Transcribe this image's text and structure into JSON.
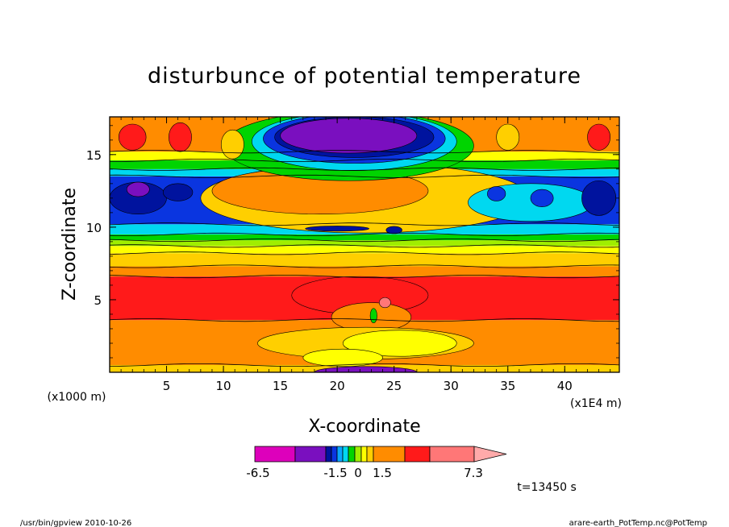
{
  "chart_data": {
    "type": "heatmap",
    "title": "disturbunce of potential temperature",
    "xlabel": "X-coordinate",
    "ylabel": "Z-coordinate",
    "x_unit_label": "(x1E4 m)",
    "y_unit_label": "(x1000 m)",
    "xlim": [
      0,
      44.8
    ],
    "ylim": [
      0,
      17.6
    ],
    "x_ticks": [
      "5",
      "10",
      "15",
      "20",
      "25",
      "30",
      "35",
      "40"
    ],
    "y_ticks": [
      "5",
      "10",
      "15"
    ],
    "colorbar": {
      "labels": [
        "-6.5",
        "-1.5",
        "0",
        "1.5",
        "7.3"
      ],
      "levels": [
        -6.5,
        -4.5,
        -2.5,
        -1.5,
        -1.0,
        -0.5,
        0,
        0.5,
        1.0,
        1.5,
        2.5,
        4.0,
        5.0,
        7.3
      ],
      "colors": [
        "#dd00bb",
        "#7a0fbf",
        "#00139e",
        "#0a35e0",
        "#0aa6ff",
        "#00d8f0",
        "#00d400",
        "#a0ee00",
        "#ffff00",
        "#ffcf00",
        "#ff8c00",
        "#ff1a1a",
        "#ff7777",
        "#ffaaaa"
      ]
    },
    "time_label": "t=13450 s",
    "grid": false,
    "bands": [
      {
        "z0": 0.0,
        "z1": 0.5,
        "color": "#ffcf00"
      },
      {
        "z0": 0.5,
        "z1": 3.6,
        "color": "#ff8c00"
      },
      {
        "z0": 3.6,
        "z1": 6.6,
        "color": "#ff1a1a"
      },
      {
        "z0": 6.6,
        "z1": 7.3,
        "color": "#ff8c00"
      },
      {
        "z0": 7.3,
        "z1": 8.2,
        "color": "#ffcf00"
      },
      {
        "z0": 8.2,
        "z1": 8.7,
        "color": "#ffff00"
      },
      {
        "z0": 8.7,
        "z1": 9.1,
        "color": "#a0ee00"
      },
      {
        "z0": 9.1,
        "z1": 9.5,
        "color": "#00d400"
      },
      {
        "z0": 9.5,
        "z1": 10.2,
        "color": "#00d8f0"
      },
      {
        "z0": 10.2,
        "z1": 13.5,
        "color": "#0a35e0"
      },
      {
        "z0": 13.5,
        "z1": 14.0,
        "color": "#00d8f0"
      },
      {
        "z0": 14.0,
        "z1": 14.6,
        "color": "#00d400"
      },
      {
        "z0": 14.6,
        "z1": 15.2,
        "color": "#ffff00"
      },
      {
        "z0": 15.2,
        "z1": 17.6,
        "color": "#ff8c00"
      }
    ],
    "blobs": [
      {
        "x": 22.5,
        "z": 12.0,
        "rx": 14.5,
        "rz": 2.4,
        "color": "#ffcf00"
      },
      {
        "x": 18.5,
        "z": 12.5,
        "rx": 9.5,
        "rz": 1.6,
        "color": "#ff8c00"
      },
      {
        "x": 21.0,
        "z": 15.6,
        "rx": 11.0,
        "rz": 2.4,
        "color": "#00d400"
      },
      {
        "x": 21.5,
        "z": 15.9,
        "rx": 9.0,
        "rz": 2.0,
        "color": "#00d8f0"
      },
      {
        "x": 21.5,
        "z": 16.1,
        "rx": 8.0,
        "rz": 1.7,
        "color": "#0a35e0"
      },
      {
        "x": 21.5,
        "z": 16.2,
        "rx": 7.0,
        "rz": 1.4,
        "color": "#00139e"
      },
      {
        "x": 21.0,
        "z": 16.3,
        "rx": 6.0,
        "rz": 1.2,
        "color": "#7a0fbf"
      },
      {
        "x": 2.5,
        "z": 12.0,
        "rx": 2.5,
        "rz": 1.1,
        "color": "#00139e"
      },
      {
        "x": 2.5,
        "z": 12.6,
        "rx": 1.0,
        "rz": 0.5,
        "color": "#7a0fbf"
      },
      {
        "x": 6.0,
        "z": 12.4,
        "rx": 1.3,
        "rz": 0.6,
        "color": "#00139e"
      },
      {
        "x": 37.0,
        "z": 11.7,
        "rx": 5.5,
        "rz": 1.3,
        "color": "#00d8f0"
      },
      {
        "x": 43.0,
        "z": 12.0,
        "rx": 1.5,
        "rz": 1.2,
        "color": "#00139e"
      },
      {
        "x": 38.0,
        "z": 12.0,
        "rx": 1.0,
        "rz": 0.6,
        "color": "#0a35e0"
      },
      {
        "x": 34.0,
        "z": 12.3,
        "rx": 0.8,
        "rz": 0.5,
        "color": "#0a35e0"
      },
      {
        "x": 2.0,
        "z": 16.2,
        "rx": 1.2,
        "rz": 0.9,
        "color": "#ff1a1a"
      },
      {
        "x": 6.2,
        "z": 16.2,
        "rx": 1.0,
        "rz": 1.0,
        "color": "#ff1a1a"
      },
      {
        "x": 43.0,
        "z": 16.2,
        "rx": 1.0,
        "rz": 0.9,
        "color": "#ff1a1a"
      },
      {
        "x": 35.0,
        "z": 16.2,
        "rx": 1.0,
        "rz": 0.9,
        "color": "#ffcf00"
      },
      {
        "x": 10.8,
        "z": 15.7,
        "rx": 1.0,
        "rz": 1.0,
        "color": "#ffcf00"
      },
      {
        "x": 22.0,
        "z": 5.3,
        "rx": 6.0,
        "rz": 1.3,
        "color": "#ff1a1a"
      },
      {
        "x": 23.0,
        "z": 3.8,
        "rx": 3.5,
        "rz": 1.0,
        "color": "#ff8c00"
      },
      {
        "x": 22.5,
        "z": 2.0,
        "rx": 9.5,
        "rz": 1.1,
        "color": "#ffcf00"
      },
      {
        "x": 25.5,
        "z": 2.0,
        "rx": 5.0,
        "rz": 0.9,
        "color": "#ffff00"
      },
      {
        "x": 20.5,
        "z": 1.0,
        "rx": 3.5,
        "rz": 0.6,
        "color": "#ffff00"
      },
      {
        "x": 22.5,
        "z": 0.0,
        "rx": 4.5,
        "rz": 0.4,
        "color": "#7a0fbf"
      },
      {
        "x": 20.0,
        "z": 9.9,
        "rx": 2.8,
        "rz": 0.18,
        "color": "#00139e"
      },
      {
        "x": 25.0,
        "z": 9.8,
        "rx": 0.7,
        "rz": 0.25,
        "color": "#00139e"
      },
      {
        "x": 24.2,
        "z": 4.8,
        "rx": 0.5,
        "rz": 0.35,
        "color": "#ff7777"
      },
      {
        "x": 23.2,
        "z": 3.9,
        "rx": 0.3,
        "rz": 0.5,
        "color": "#00d400"
      }
    ]
  },
  "footer": {
    "left": "/usr/bin/gpview   2010-10-26",
    "right": "arare-earth_PotTemp.nc@PotTemp"
  }
}
